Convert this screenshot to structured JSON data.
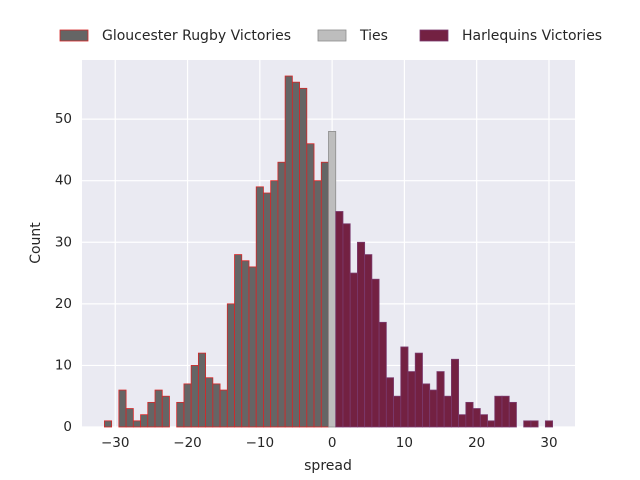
{
  "chart_data": {
    "type": "histogram",
    "x_label": "spread",
    "y_label": "Count",
    "xlim": [
      -34.6,
      33.6
    ],
    "ylim": [
      0,
      59.6
    ],
    "xticks": [
      {
        "value": -30,
        "label": "−30"
      },
      {
        "value": -20,
        "label": "−20"
      },
      {
        "value": -10,
        "label": "−10"
      },
      0,
      10,
      20,
      30
    ],
    "yticks": [
      0,
      10,
      20,
      30,
      40,
      50
    ],
    "grid": true,
    "legend": "top",
    "series": [
      {
        "name": "Gloucester Rugby Victories",
        "color": "#656565",
        "edgecolor": "#d62728",
        "bins": [
          -31.5,
          -30.5,
          -29.5,
          -28.5,
          -27.5,
          -26.5,
          -25.5,
          -24.5,
          -23.5,
          -22.5,
          -21.5,
          -20.5,
          -19.5,
          -18.5,
          -17.5,
          -16.5,
          -15.5,
          -14.5,
          -13.5,
          -12.5,
          -11.5,
          -10.5,
          -9.5,
          -8.5,
          -7.5,
          -6.5,
          -5.5,
          -4.5,
          -3.5,
          -2.5,
          -1.5,
          -0.5
        ],
        "values": [
          1,
          0,
          6,
          3,
          1,
          2,
          4,
          6,
          5,
          0,
          4,
          7,
          10,
          12,
          8,
          7,
          6,
          20,
          28,
          27,
          26,
          39,
          38,
          40,
          43,
          57,
          56,
          55,
          46,
          40,
          43
        ]
      },
      {
        "name": "Ties",
        "color": "#bdbdbd",
        "edgecolor": "#8c8c8c",
        "bins": [
          -0.5,
          0.5
        ],
        "values": [
          48
        ]
      },
      {
        "name": "Harlequins Victories",
        "color": "#732142",
        "edgecolor": "#7b3a6e",
        "bins": [
          0.5,
          1.5,
          2.5,
          3.5,
          4.5,
          5.5,
          6.5,
          7.5,
          8.5,
          9.5,
          10.5,
          11.5,
          12.5,
          13.5,
          14.5,
          15.5,
          16.5,
          17.5,
          18.5,
          19.5,
          20.5,
          21.5,
          22.5,
          23.5,
          24.5,
          25.5,
          26.5,
          27.5,
          28.5,
          29.5,
          30.5
        ],
        "values": [
          35,
          33,
          25,
          30,
          28,
          24,
          17,
          8,
          5,
          13,
          9,
          12,
          7,
          6,
          9,
          5,
          11,
          2,
          4,
          3,
          2,
          1,
          5,
          5,
          4,
          0,
          1,
          1,
          0,
          1
        ]
      }
    ]
  }
}
